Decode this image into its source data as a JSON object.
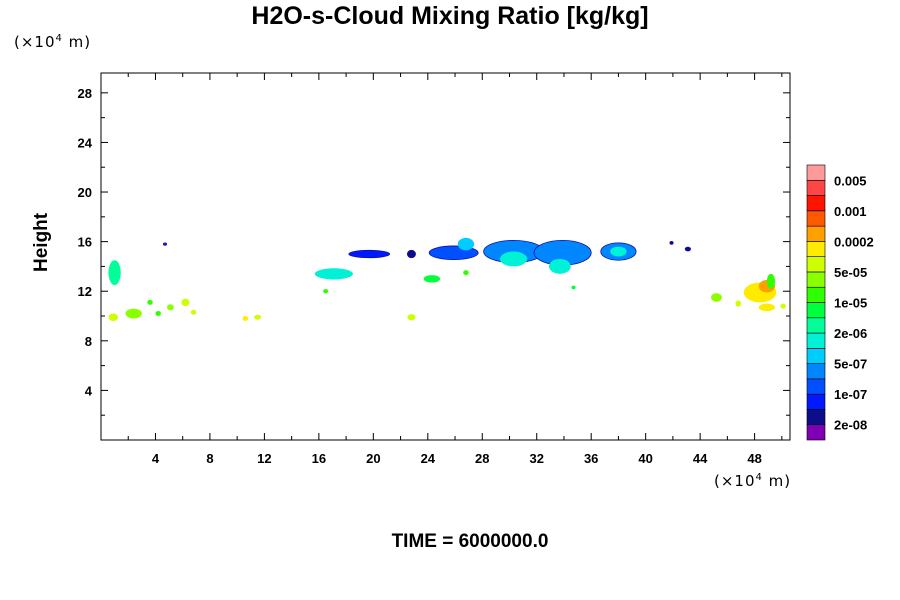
{
  "chart_data": {
    "type": "heatmap",
    "title": "H2O-s-Cloud Mixing Ratio [kg/kg]",
    "ylabel": "Height",
    "xlabel": "",
    "x_unit": "(×10",
    "x_unit_exp": "4",
    "x_unit_tail": " m)",
    "y_unit": "(×10",
    "y_unit_exp": "4",
    "y_unit_tail": " m)",
    "xlim": [
      0,
      50.6
    ],
    "ylim": [
      0,
      29.6
    ],
    "x_ticks": [
      "4",
      "8",
      "12",
      "16",
      "20",
      "24",
      "28",
      "32",
      "36",
      "40",
      "44",
      "48"
    ],
    "x_tick_values": [
      4,
      8,
      12,
      16,
      20,
      24,
      28,
      32,
      36,
      40,
      44,
      48
    ],
    "y_ticks": [
      "4",
      "8",
      "12",
      "16",
      "20",
      "24",
      "28"
    ],
    "y_tick_values": [
      4,
      8,
      12,
      16,
      20,
      24,
      28
    ],
    "colorbar": {
      "colors": [
        "#7f00b2",
        "#0d0d8c",
        "#0019ff",
        "#0050ff",
        "#0087ff",
        "#00cdff",
        "#00f2d6",
        "#00ff98",
        "#00ff3c",
        "#30ff00",
        "#8aff00",
        "#cdff00",
        "#ffeb00",
        "#ffa000",
        "#ff5a00",
        "#ff1400",
        "#ff4646",
        "#ff9a9a"
      ],
      "labels": [
        "2e-08",
        "1e-07",
        "5e-07",
        "2e-06",
        "1e-05",
        "5e-05",
        "0.0002",
        "0.001",
        "0.005"
      ]
    },
    "cloud_regions": [
      {
        "x": 1.0,
        "y": 13.5,
        "rx": 0.45,
        "ry": 1.0,
        "level": 7
      },
      {
        "x": 0.9,
        "y": 9.9,
        "rx": 0.35,
        "ry": 0.3,
        "level": 11
      },
      {
        "x": 2.4,
        "y": 10.2,
        "rx": 0.6,
        "ry": 0.4,
        "level": 10
      },
      {
        "x": 3.6,
        "y": 11.1,
        "rx": 0.2,
        "ry": 0.2,
        "level": 9
      },
      {
        "x": 4.2,
        "y": 10.2,
        "rx": 0.2,
        "ry": 0.2,
        "level": 9
      },
      {
        "x": 5.1,
        "y": 10.7,
        "rx": 0.25,
        "ry": 0.25,
        "level": 10
      },
      {
        "x": 6.2,
        "y": 11.1,
        "rx": 0.3,
        "ry": 0.3,
        "level": 11
      },
      {
        "x": 6.8,
        "y": 10.3,
        "rx": 0.2,
        "ry": 0.2,
        "level": 11
      },
      {
        "x": 4.7,
        "y": 15.8,
        "rx": 0.12,
        "ry": 0.1,
        "level": 0
      },
      {
        "x": 10.6,
        "y": 9.8,
        "rx": 0.2,
        "ry": 0.2,
        "level": 12
      },
      {
        "x": 11.5,
        "y": 9.9,
        "rx": 0.25,
        "ry": 0.2,
        "level": 11
      },
      {
        "x": 17.1,
        "y": 13.4,
        "rx": 1.4,
        "ry": 0.45,
        "level": 6
      },
      {
        "x": 16.5,
        "y": 12.0,
        "rx": 0.18,
        "ry": 0.18,
        "level": 9
      },
      {
        "x": 19.7,
        "y": 15.0,
        "rx": 1.5,
        "ry": 0.3,
        "level": 2
      },
      {
        "x": 22.8,
        "y": 15.0,
        "rx": 0.3,
        "ry": 0.3,
        "level": 1
      },
      {
        "x": 22.8,
        "y": 9.9,
        "rx": 0.3,
        "ry": 0.25,
        "level": 11
      },
      {
        "x": 24.3,
        "y": 13.0,
        "rx": 0.6,
        "ry": 0.3,
        "level": 8
      },
      {
        "x": 25.9,
        "y": 15.1,
        "rx": 1.8,
        "ry": 0.55,
        "level": 3
      },
      {
        "x": 26.8,
        "y": 15.8,
        "rx": 0.6,
        "ry": 0.5,
        "level": 5
      },
      {
        "x": 26.8,
        "y": 13.5,
        "rx": 0.2,
        "ry": 0.2,
        "level": 9
      },
      {
        "x": 30.3,
        "y": 15.2,
        "rx": 2.2,
        "ry": 0.9,
        "level": 4
      },
      {
        "x": 30.3,
        "y": 14.6,
        "rx": 1.0,
        "ry": 0.6,
        "level": 6
      },
      {
        "x": 33.9,
        "y": 15.1,
        "rx": 2.1,
        "ry": 1.0,
        "level": 4
      },
      {
        "x": 33.7,
        "y": 14.0,
        "rx": 0.8,
        "ry": 0.6,
        "level": 6
      },
      {
        "x": 34.7,
        "y": 12.3,
        "rx": 0.15,
        "ry": 0.15,
        "level": 8
      },
      {
        "x": 38.0,
        "y": 15.2,
        "rx": 1.3,
        "ry": 0.7,
        "level": 4
      },
      {
        "x": 38.0,
        "y": 15.2,
        "rx": 0.6,
        "ry": 0.4,
        "level": 6
      },
      {
        "x": 41.9,
        "y": 15.9,
        "rx": 0.12,
        "ry": 0.12,
        "level": 1
      },
      {
        "x": 43.1,
        "y": 15.4,
        "rx": 0.2,
        "ry": 0.15,
        "level": 1
      },
      {
        "x": 45.2,
        "y": 11.5,
        "rx": 0.4,
        "ry": 0.35,
        "level": 10
      },
      {
        "x": 46.8,
        "y": 11.0,
        "rx": 0.2,
        "ry": 0.25,
        "level": 11
      },
      {
        "x": 48.4,
        "y": 11.9,
        "rx": 1.2,
        "ry": 0.8,
        "level": 12
      },
      {
        "x": 48.9,
        "y": 12.4,
        "rx": 0.6,
        "ry": 0.5,
        "level": 13
      },
      {
        "x": 49.2,
        "y": 12.8,
        "rx": 0.3,
        "ry": 0.6,
        "level": 9
      },
      {
        "x": 48.9,
        "y": 10.7,
        "rx": 0.6,
        "ry": 0.3,
        "level": 12
      },
      {
        "x": 50.1,
        "y": 10.8,
        "rx": 0.2,
        "ry": 0.2,
        "level": 11
      }
    ]
  },
  "footer": {
    "time": "TIME = 6000000.0"
  }
}
